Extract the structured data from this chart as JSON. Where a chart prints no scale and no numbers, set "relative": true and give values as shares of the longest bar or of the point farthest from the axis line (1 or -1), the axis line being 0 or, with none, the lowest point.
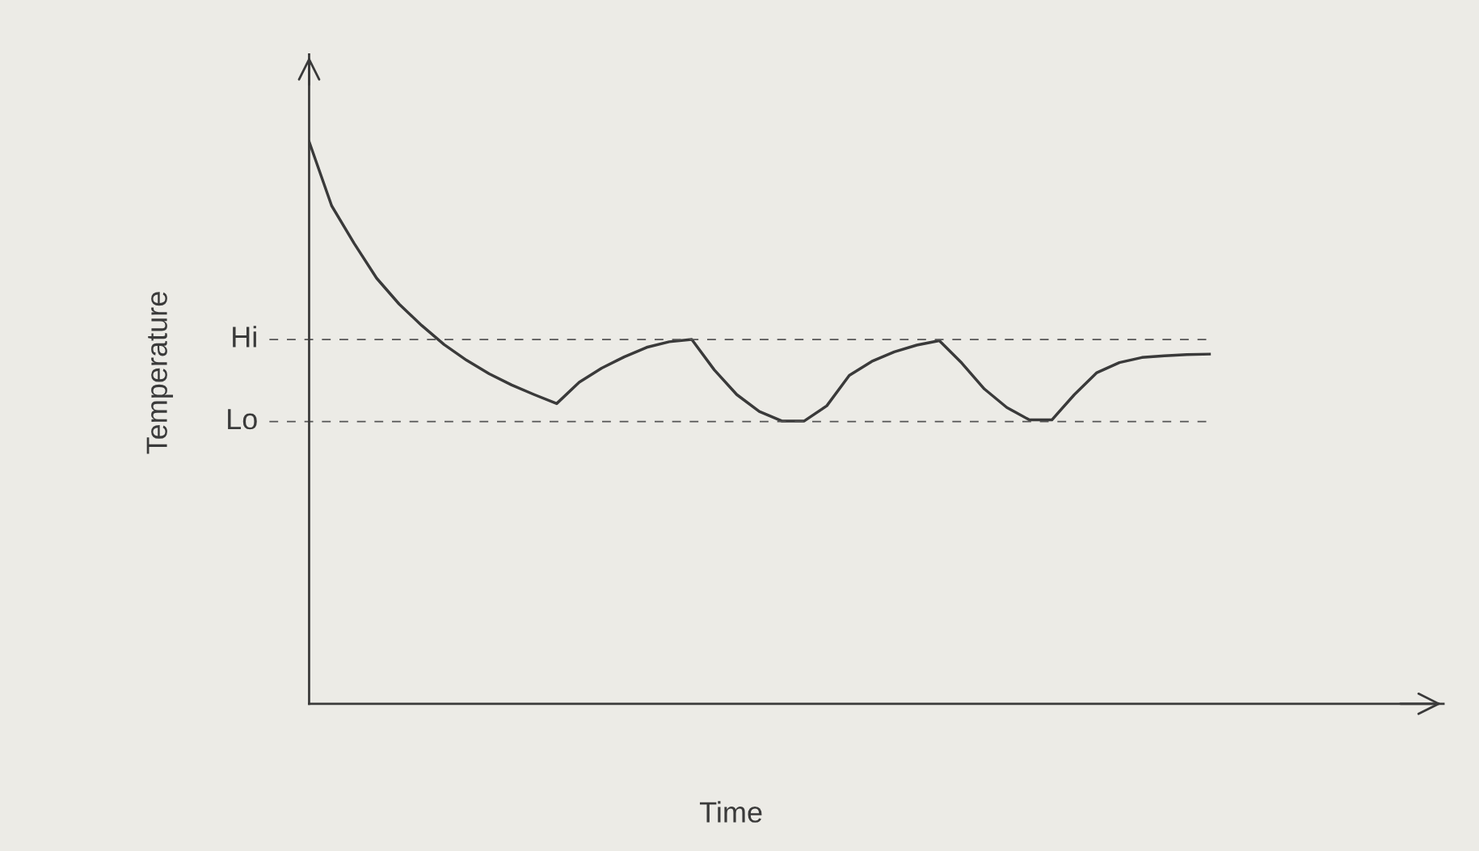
{
  "chart_data": {
    "type": "line",
    "relative": true,
    "xlabel": "Time",
    "ylabel": "Temperature",
    "categories": [
      null,
      null,
      null,
      null,
      null,
      null,
      null,
      null,
      null,
      null,
      null,
      null,
      null,
      null,
      null,
      null,
      null,
      null,
      null,
      null,
      null,
      null,
      null,
      null,
      null,
      null,
      null,
      null,
      null,
      null,
      null,
      null,
      null,
      null,
      null,
      null,
      null,
      null,
      null,
      null,
      null
    ],
    "series": [
      {
        "color": "#3a3a3a",
        "values": [
          1.0,
          0.886,
          0.819,
          0.757,
          0.711,
          0.673,
          0.639,
          0.611,
          0.587,
          0.567,
          0.55,
          0.534,
          0.572,
          0.597,
          0.617,
          0.634,
          0.644,
          0.648,
          0.594,
          0.55,
          0.52,
          0.503,
          0.503,
          0.53,
          0.584,
          0.609,
          0.626,
          0.638,
          0.646,
          0.606,
          0.56,
          0.527,
          0.505,
          0.505,
          0.55,
          0.589,
          0.607,
          0.616,
          0.619,
          0.621,
          0.622
        ]
      }
    ],
    "ref_lines": [
      {
        "axis": "y",
        "value": 0.648,
        "label": "Hi",
        "line_style": "dashed",
        "color": "#555555"
      },
      {
        "axis": "y",
        "value": 0.502,
        "label": "Lo",
        "line_style": "dashed",
        "color": "#555555"
      }
    ],
    "legend": false,
    "line_style": "solid",
    "marker": "none"
  }
}
